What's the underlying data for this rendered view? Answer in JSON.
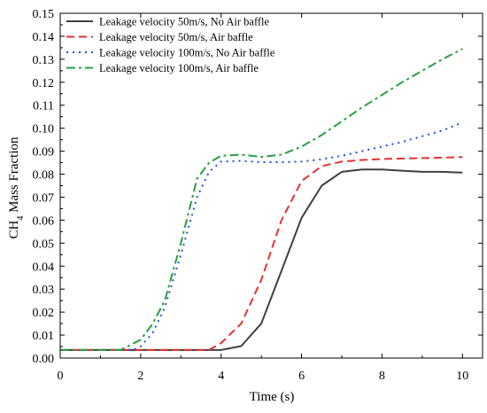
{
  "chart_data": {
    "type": "line",
    "title": "",
    "xlabel": "Time (s)",
    "ylabel_main": "CH",
    "ylabel_sub": "4",
    "ylabel_rest": " Mass Fraction",
    "xlim": [
      0,
      10.5
    ],
    "ylim": [
      0,
      0.15
    ],
    "xticks": [
      0,
      2,
      4,
      6,
      8,
      10
    ],
    "xtick_labels": [
      "0",
      "2",
      "4",
      "6",
      "8",
      "10"
    ],
    "yticks": [
      0,
      0.01,
      0.02,
      0.03,
      0.04,
      0.05,
      0.06,
      0.07,
      0.08,
      0.09,
      0.1,
      0.11,
      0.12,
      0.13,
      0.14,
      0.15
    ],
    "ytick_labels": [
      "0.00",
      "0.01",
      "0.02",
      "0.03",
      "0.04",
      "0.05",
      "0.06",
      "0.07",
      "0.08",
      "0.09",
      "0.10",
      "0.11",
      "0.12",
      "0.13",
      "0.14",
      "0.15"
    ],
    "grid": false,
    "legend_position": "top-left",
    "series": [
      {
        "name": "Leakage velocity 50m/s, No Air baffle",
        "color": "#404040",
        "dash": "solid",
        "x": [
          0,
          1,
          2,
          3,
          4,
          4.5,
          5,
          5.5,
          6,
          6.5,
          7,
          7.5,
          8,
          8.5,
          9,
          9.5,
          10
        ],
        "y": [
          0.0035,
          0.0035,
          0.0035,
          0.0035,
          0.0035,
          0.0052,
          0.015,
          0.038,
          0.061,
          0.075,
          0.081,
          0.082,
          0.082,
          0.0815,
          0.081,
          0.081,
          0.0807
        ]
      },
      {
        "name": "Leakage velocity 50m/s, Air baffle",
        "color": "#e83030",
        "dash": "dashed",
        "x": [
          0,
          1,
          2,
          3,
          3.7,
          4,
          4.5,
          5,
          5.5,
          6,
          6.5,
          7,
          7.5,
          8,
          8.5,
          9,
          9.5,
          10
        ],
        "y": [
          0.0035,
          0.0035,
          0.0035,
          0.0035,
          0.0035,
          0.0065,
          0.015,
          0.034,
          0.06,
          0.077,
          0.0835,
          0.0855,
          0.0862,
          0.0866,
          0.0868,
          0.087,
          0.0872,
          0.0874
        ]
      },
      {
        "name": "Leakage velocity 100m/s, No Air baffle",
        "color": "#2050d8",
        "dash": "dotted",
        "x": [
          0,
          1,
          1.8,
          2,
          2.3,
          2.6,
          3,
          3.4,
          3.7,
          4,
          4.5,
          5,
          5.5,
          6,
          6.5,
          7,
          7.5,
          8,
          8.5,
          9,
          9.5,
          10
        ],
        "y": [
          0.0035,
          0.0035,
          0.0035,
          0.005,
          0.011,
          0.022,
          0.045,
          0.07,
          0.081,
          0.0855,
          0.0858,
          0.0852,
          0.0852,
          0.0855,
          0.0865,
          0.088,
          0.09,
          0.092,
          0.094,
          0.0965,
          0.099,
          0.1025
        ]
      },
      {
        "name": "Leakage velocity 100m/s, Air baffle",
        "color": "#28a040",
        "dash": "dashdot",
        "x": [
          0,
          1,
          1.5,
          2,
          2.3,
          2.6,
          3,
          3.4,
          3.7,
          4,
          4.5,
          5,
          5.5,
          6,
          6.5,
          7,
          7.5,
          8,
          8.5,
          9,
          9.5,
          10
        ],
        "y": [
          0.0035,
          0.0035,
          0.0035,
          0.008,
          0.015,
          0.025,
          0.05,
          0.078,
          0.085,
          0.088,
          0.0885,
          0.0875,
          0.0885,
          0.092,
          0.097,
          0.103,
          0.109,
          0.1145,
          0.12,
          0.125,
          0.13,
          0.1345
        ]
      }
    ]
  }
}
